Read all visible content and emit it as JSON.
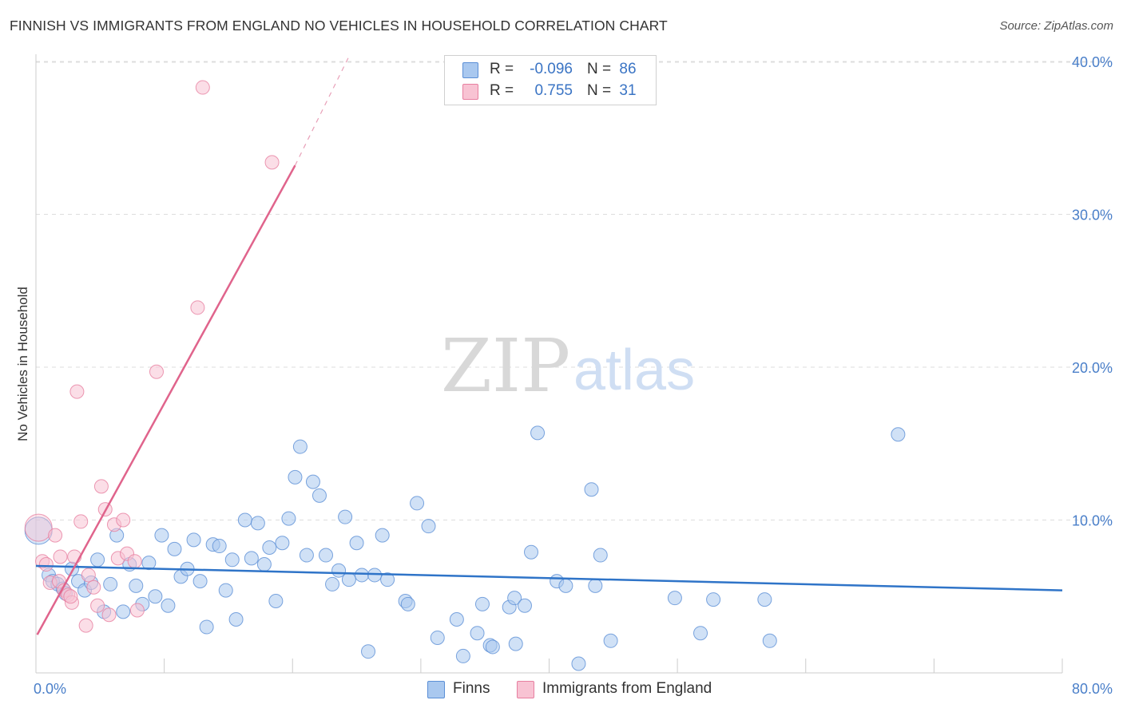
{
  "title": "FINNISH VS IMMIGRANTS FROM ENGLAND NO VEHICLES IN HOUSEHOLD CORRELATION CHART",
  "source": "Source: ZipAtlas.com",
  "watermark": {
    "zip": "ZIP",
    "atlas": "atlas"
  },
  "legend": {
    "rows": [
      {
        "r_label": "R =",
        "r_value": "-0.096",
        "n_label": "N =",
        "n_value": "86",
        "color": "#a9c8ef",
        "stroke": "#5b8fd6"
      },
      {
        "r_label": "R =",
        "r_value": "0.755",
        "n_label": "N =",
        "n_value": "31",
        "color": "#f8c3d3",
        "stroke": "#e77fa0"
      }
    ]
  },
  "bottom_legend": [
    {
      "label": "Finns",
      "color": "#a9c8ef",
      "stroke": "#5b8fd6"
    },
    {
      "label": "Immigrants from England",
      "color": "#f8c3d3",
      "stroke": "#e77fa0"
    }
  ],
  "chart_data": {
    "type": "scatter",
    "title": "FINNISH VS IMMIGRANTS FROM ENGLAND NO VEHICLES IN HOUSEHOLD CORRELATION CHART",
    "xlabel": "",
    "ylabel": "No Vehicles in Household",
    "xlim": [
      0,
      80
    ],
    "ylim": [
      0,
      41
    ],
    "x_tick_labels": [
      "0.0%",
      "80.0%"
    ],
    "y_ticks": [
      10,
      20,
      30,
      40
    ],
    "y_tick_labels": [
      "10.0%",
      "20.0%",
      "30.0%",
      "40.0%"
    ],
    "grid": true,
    "series": [
      {
        "name": "Finns",
        "color": "#5b8fd6",
        "fill": "#a9c8ef",
        "trend": {
          "x0": 0,
          "y0": 7.0,
          "x1": 80,
          "y1": 5.4
        },
        "points": [
          [
            0.2,
            9.3,
            "big"
          ],
          [
            1.0,
            6.4
          ],
          [
            1.3,
            6.0
          ],
          [
            1.7,
            5.8
          ],
          [
            2.1,
            5.5
          ],
          [
            2.3,
            5.2
          ],
          [
            2.8,
            6.8
          ],
          [
            3.3,
            6.0
          ],
          [
            3.8,
            5.4
          ],
          [
            4.3,
            5.9
          ],
          [
            4.8,
            7.4
          ],
          [
            5.3,
            4.0
          ],
          [
            5.8,
            5.8
          ],
          [
            6.3,
            9.0
          ],
          [
            6.8,
            4.0
          ],
          [
            7.3,
            7.1
          ],
          [
            7.8,
            5.7
          ],
          [
            8.3,
            4.5
          ],
          [
            8.8,
            7.2
          ],
          [
            9.3,
            5.0
          ],
          [
            9.8,
            9.0
          ],
          [
            10.3,
            4.4
          ],
          [
            10.8,
            8.1
          ],
          [
            11.3,
            6.3
          ],
          [
            11.8,
            6.8
          ],
          [
            12.3,
            8.7
          ],
          [
            12.8,
            6.0
          ],
          [
            13.3,
            3.0
          ],
          [
            13.8,
            8.4
          ],
          [
            14.3,
            8.3
          ],
          [
            14.8,
            5.4
          ],
          [
            15.3,
            7.4
          ],
          [
            15.6,
            3.5
          ],
          [
            16.3,
            10.0
          ],
          [
            16.8,
            7.5
          ],
          [
            17.3,
            9.8
          ],
          [
            17.8,
            7.1
          ],
          [
            18.2,
            8.2
          ],
          [
            18.7,
            4.7
          ],
          [
            19.2,
            8.5
          ],
          [
            19.7,
            10.1
          ],
          [
            20.2,
            12.8
          ],
          [
            20.6,
            14.8
          ],
          [
            21.1,
            7.7
          ],
          [
            21.6,
            12.5
          ],
          [
            22.1,
            11.6
          ],
          [
            22.6,
            7.7
          ],
          [
            23.1,
            5.8
          ],
          [
            23.6,
            6.7
          ],
          [
            24.1,
            10.2
          ],
          [
            24.4,
            6.1
          ],
          [
            25.0,
            8.5
          ],
          [
            25.4,
            6.4
          ],
          [
            25.9,
            1.4
          ],
          [
            26.4,
            6.4
          ],
          [
            27.0,
            9.0
          ],
          [
            27.4,
            6.1
          ],
          [
            28.8,
            4.7
          ],
          [
            29.0,
            4.5
          ],
          [
            29.7,
            11.1
          ],
          [
            30.6,
            9.6
          ],
          [
            31.3,
            2.3
          ],
          [
            32.8,
            3.5
          ],
          [
            33.3,
            1.1
          ],
          [
            34.4,
            2.6
          ],
          [
            34.8,
            4.5
          ],
          [
            35.4,
            1.8
          ],
          [
            35.6,
            1.7
          ],
          [
            36.9,
            4.3
          ],
          [
            37.3,
            4.9
          ],
          [
            37.4,
            1.9
          ],
          [
            38.1,
            4.4
          ],
          [
            38.6,
            7.9
          ],
          [
            39.1,
            15.7
          ],
          [
            40.6,
            6.0
          ],
          [
            41.3,
            5.7
          ],
          [
            42.3,
            0.6
          ],
          [
            43.3,
            12.0
          ],
          [
            43.6,
            5.7
          ],
          [
            44.0,
            7.7
          ],
          [
            44.8,
            2.1
          ],
          [
            49.8,
            4.9
          ],
          [
            51.8,
            2.6
          ],
          [
            52.8,
            4.8
          ],
          [
            56.8,
            4.8
          ],
          [
            57.2,
            2.1
          ],
          [
            67.2,
            15.6
          ]
        ]
      },
      {
        "name": "Immigrants from England",
        "color": "#e77fa0",
        "fill": "#f8c3d3",
        "trend": {
          "x0": 0.1,
          "y0": 2.5,
          "x1": 20.2,
          "y1": 33.2
        },
        "trend_dashed": {
          "x0": 20.2,
          "y0": 33.2,
          "x1": 24.5,
          "y1": 40.5
        },
        "points": [
          [
            0.2,
            9.5,
            "big"
          ],
          [
            0.5,
            7.3
          ],
          [
            0.8,
            7.1
          ],
          [
            1.1,
            5.9
          ],
          [
            1.5,
            9.0
          ],
          [
            1.8,
            6.0
          ],
          [
            2.2,
            5.4
          ],
          [
            2.5,
            5.1
          ],
          [
            2.8,
            4.6
          ],
          [
            3.0,
            7.6
          ],
          [
            3.2,
            18.4
          ],
          [
            3.5,
            9.9
          ],
          [
            3.9,
            3.1
          ],
          [
            4.1,
            6.4
          ],
          [
            4.5,
            5.6
          ],
          [
            4.8,
            4.4
          ],
          [
            5.1,
            12.2
          ],
          [
            5.4,
            10.7
          ],
          [
            5.7,
            3.8
          ],
          [
            6.1,
            9.7
          ],
          [
            6.4,
            7.5
          ],
          [
            6.8,
            10.0
          ],
          [
            7.1,
            7.8
          ],
          [
            7.7,
            7.3
          ],
          [
            7.9,
            4.1
          ],
          [
            9.4,
            19.7
          ],
          [
            12.6,
            23.9
          ],
          [
            13.0,
            38.3
          ],
          [
            18.4,
            33.4
          ],
          [
            1.9,
            7.6
          ],
          [
            2.7,
            5.0
          ]
        ]
      }
    ]
  }
}
